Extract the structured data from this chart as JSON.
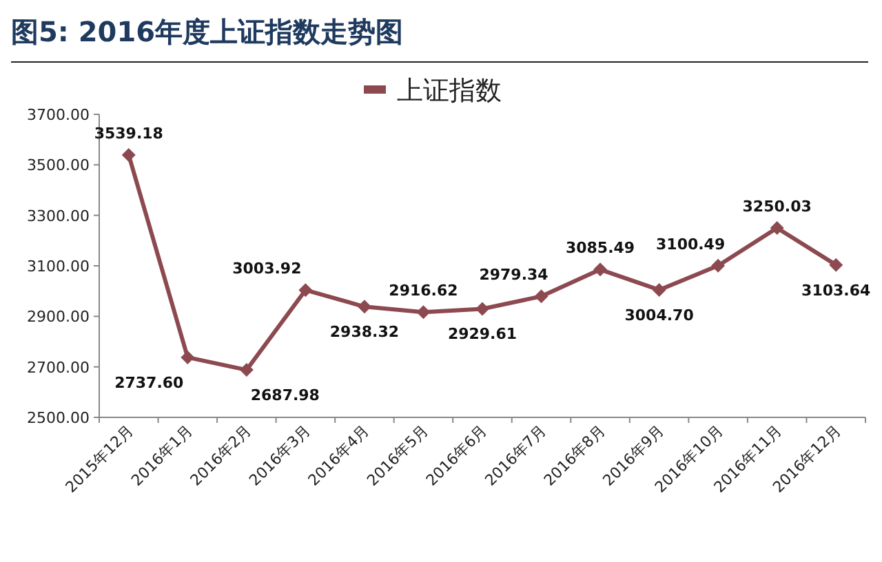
{
  "chart_data": {
    "type": "line",
    "title": "图5: 2016年度上证指数走势图",
    "categories": [
      "2015年12月",
      "2016年1月",
      "2016年2月",
      "2016年3月",
      "2016年4月",
      "2016年5月",
      "2016年6月",
      "2016年7月",
      "2016年8月",
      "2016年9月",
      "2016年10月",
      "2016年11月",
      "2016年12月"
    ],
    "series": [
      {
        "name": "上证指数",
        "color": "#8c4a50",
        "values": [
          3539.18,
          2737.6,
          2687.98,
          3003.92,
          2938.32,
          2916.62,
          2929.61,
          2979.34,
          3085.49,
          3004.7,
          3100.49,
          3250.03,
          3103.64
        ]
      }
    ],
    "ylim": [
      2500,
      3700
    ],
    "yticks": [
      {
        "value": 2500,
        "label": "2500.00"
      },
      {
        "value": 2700,
        "label": "2700.00"
      },
      {
        "value": 2900,
        "label": "2900.00"
      },
      {
        "value": 3100,
        "label": "3100.00"
      },
      {
        "value": 3300,
        "label": "3300.00"
      },
      {
        "value": 3500,
        "label": "3500.00"
      },
      {
        "value": 3700,
        "label": "3700.00"
      }
    ],
    "value_labels": [
      "3539.18",
      "2737.60",
      "2687.98",
      "3003.92",
      "2938.32",
      "2916.62",
      "2929.61",
      "2979.34",
      "3085.49",
      "3004.70",
      "3100.49",
      "3250.03",
      "3103.64"
    ],
    "marker": "diamond",
    "line_style": "solid",
    "grid": false,
    "legend": "top"
  }
}
